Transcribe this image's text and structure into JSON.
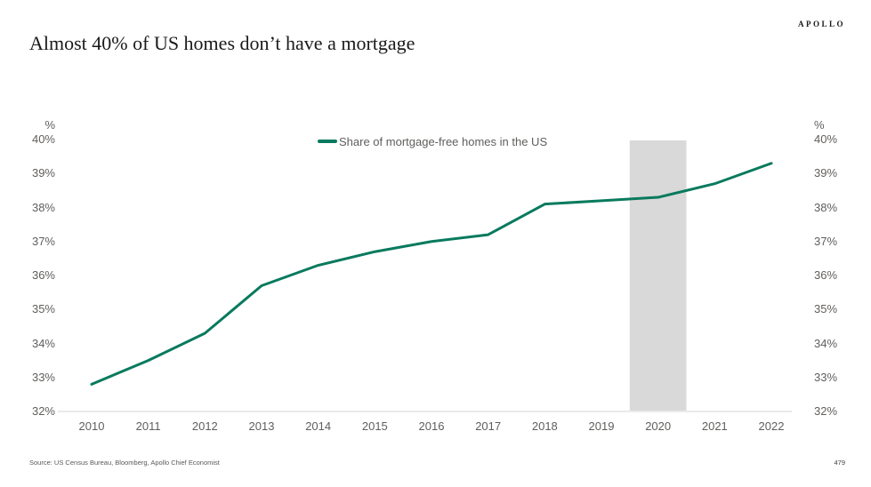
{
  "header": {
    "logo": "APOLLO",
    "title": "Almost 40% of US homes don’t have a mortgage"
  },
  "legend": {
    "label": "Share of mortgage-free homes in the US"
  },
  "axis": {
    "unit_label": "%",
    "y_ticks": [
      "40%",
      "39%",
      "38%",
      "37%",
      "36%",
      "35%",
      "34%",
      "33%",
      "32%"
    ],
    "x_ticks": [
      "2010",
      "2011",
      "2012",
      "2013",
      "2014",
      "2015",
      "2016",
      "2017",
      "2018",
      "2019",
      "2020",
      "2021",
      "2022"
    ]
  },
  "chart_data": {
    "type": "line",
    "title": "Almost 40% of US homes don't have a mortgage",
    "xlabel": "",
    "ylabel": "%",
    "x": [
      2010,
      2011,
      2012,
      2013,
      2014,
      2015,
      2016,
      2017,
      2018,
      2019,
      2020,
      2021,
      2022
    ],
    "series": [
      {
        "name": "Share of mortgage-free homes in the US",
        "values": [
          32.8,
          33.5,
          34.3,
          35.7,
          36.3,
          36.7,
          37.0,
          37.2,
          38.1,
          38.2,
          38.3,
          38.7,
          39.3
        ]
      }
    ],
    "ylim": [
      32,
      40
    ],
    "y_tick_step": 1,
    "grid": false,
    "legend_position": "top-center",
    "line_color": "#087a5e",
    "axis_line_color": "#d6d6d6",
    "highlight_band": {
      "x_start": 2019.5,
      "x_end": 2020.5,
      "color": "#d9d9d9"
    }
  },
  "footer": {
    "source": "Source: US Census Bureau, Bloomberg, Apollo Chief Economist",
    "page_number": "479"
  }
}
